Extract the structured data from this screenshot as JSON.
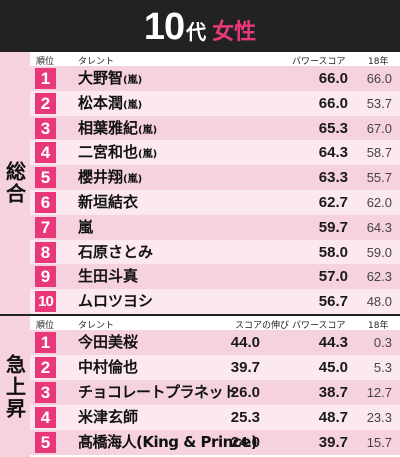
{
  "header": {
    "age": "10",
    "dai": "代",
    "gender": "女性"
  },
  "overall": {
    "side_label": "総合",
    "columns": {
      "rank": "順位",
      "talent": "タレント",
      "power": "パワースコア",
      "prev": "18年"
    },
    "rows": [
      {
        "rank": "1",
        "name": "大野智",
        "group": "(嵐)",
        "power": "66.0",
        "prev": "66.0"
      },
      {
        "rank": "2",
        "name": "松本潤",
        "group": "(嵐)",
        "power": "66.0",
        "prev": "53.7"
      },
      {
        "rank": "3",
        "name": "相葉雅紀",
        "group": "(嵐)",
        "power": "65.3",
        "prev": "67.0"
      },
      {
        "rank": "4",
        "name": "二宮和也",
        "group": "(嵐)",
        "power": "64.3",
        "prev": "58.7"
      },
      {
        "rank": "5",
        "name": "櫻井翔",
        "group": "(嵐)",
        "power": "63.3",
        "prev": "55.7"
      },
      {
        "rank": "6",
        "name": "新垣結衣",
        "group": "",
        "power": "62.7",
        "prev": "62.0"
      },
      {
        "rank": "7",
        "name": "嵐",
        "group": "",
        "power": "59.7",
        "prev": "64.3"
      },
      {
        "rank": "8",
        "name": "石原さとみ",
        "group": "",
        "power": "58.0",
        "prev": "59.0"
      },
      {
        "rank": "9",
        "name": "生田斗真",
        "group": "",
        "power": "57.0",
        "prev": "62.3"
      },
      {
        "rank": "10",
        "name": "ムロツヨシ",
        "group": "",
        "power": "56.7",
        "prev": "48.0"
      }
    ]
  },
  "rising": {
    "side_label": "急上昇",
    "columns": {
      "rank": "順位",
      "talent": "タレント",
      "growth": "スコアの伸び",
      "power": "パワースコア",
      "prev": "18年"
    },
    "rows": [
      {
        "rank": "1",
        "name": "今田美桜",
        "growth": "44.0",
        "power": "44.3",
        "prev": "0.3"
      },
      {
        "rank": "2",
        "name": "中村倫也",
        "growth": "39.7",
        "power": "45.0",
        "prev": "5.3"
      },
      {
        "rank": "3",
        "name": "チョコレートプラネット",
        "growth": "26.0",
        "power": "38.7",
        "prev": "12.7"
      },
      {
        "rank": "4",
        "name": "米津玄師",
        "growth": "25.3",
        "power": "48.7",
        "prev": "23.3"
      },
      {
        "rank": "5",
        "name": "髙橋海人(King & Prince)",
        "growth": "24.0",
        "power": "39.7",
        "prev": "15.7"
      }
    ]
  }
}
